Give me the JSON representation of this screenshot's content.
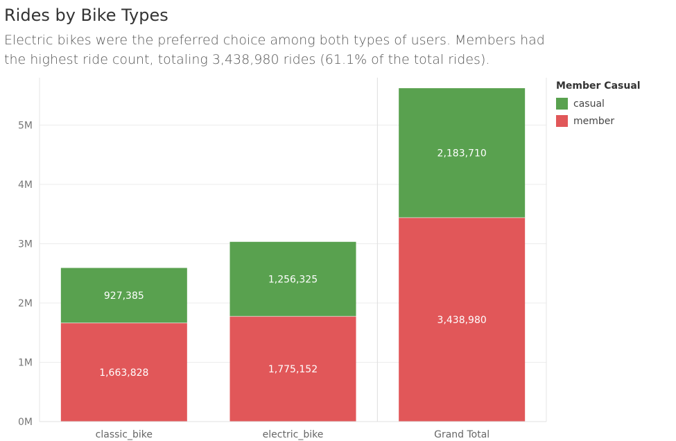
{
  "title": "Rides by Bike Types",
  "subtitle": "Electric bikes were the preferred choice among both types of users. Members had the highest ride count, totaling 3,438,980 rides (61.1% of the total rides).",
  "legend": {
    "title": "Member Casual",
    "items": [
      {
        "label": "casual",
        "color": "#59a14f"
      },
      {
        "label": "member",
        "color": "#e15759"
      }
    ]
  },
  "chart_data": {
    "type": "bar",
    "stacked": true,
    "categories": [
      "classic_bike",
      "electric_bike",
      "Grand Total"
    ],
    "series": [
      {
        "name": "member",
        "color": "#e15759",
        "values": [
          1663828,
          1775152,
          3438980
        ],
        "labels": [
          "1,663,828",
          "1,775,152",
          "3,438,980"
        ]
      },
      {
        "name": "casual",
        "color": "#59a14f",
        "values": [
          927385,
          1256325,
          2183710
        ],
        "labels": [
          "927,385",
          "1,256,325",
          "2,183,710"
        ]
      }
    ],
    "yticks": [
      {
        "value": 0,
        "label": "0M"
      },
      {
        "value": 1000000,
        "label": "1M"
      },
      {
        "value": 2000000,
        "label": "2M"
      },
      {
        "value": 3000000,
        "label": "3M"
      },
      {
        "value": 4000000,
        "label": "4M"
      },
      {
        "value": 5000000,
        "label": "5M"
      }
    ],
    "ylim": [
      0,
      5800000
    ],
    "grid": true,
    "legend_position": "top-right"
  }
}
